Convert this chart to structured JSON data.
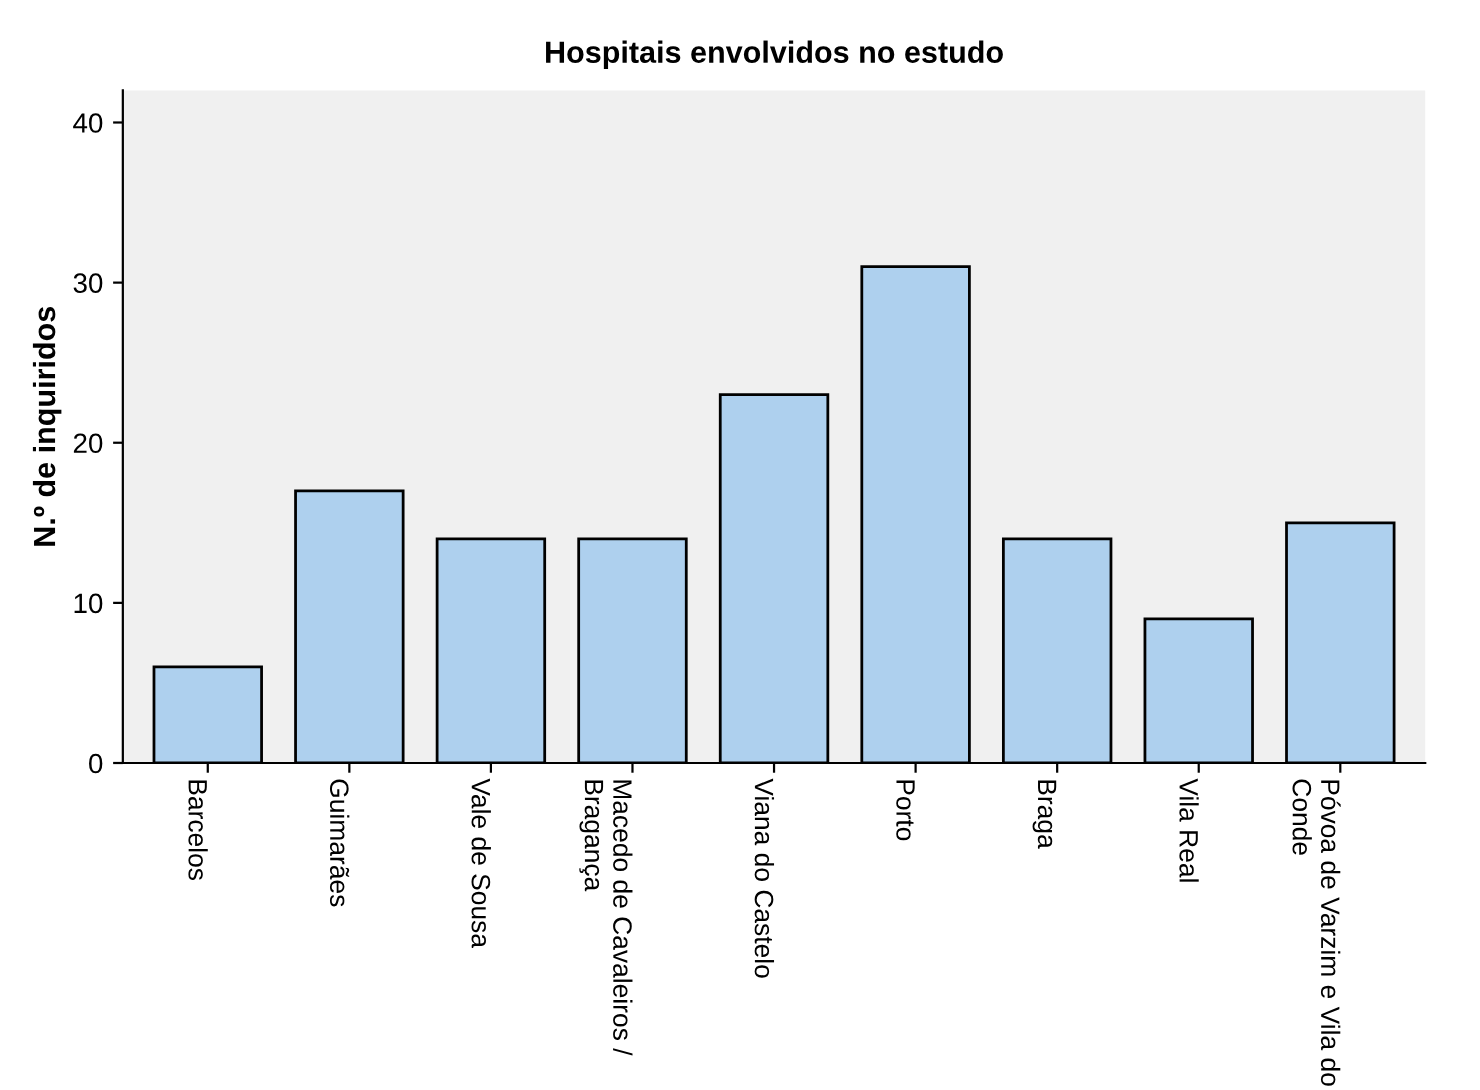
{
  "chart_data": {
    "type": "bar",
    "title": "Hospitais envolvidos no estudo",
    "ylabel": "N.º de inquiridos",
    "categories": [
      "Barcelos",
      "Guimarães",
      "Vale de Sousa",
      "Macedo de Cavaleiros /\nBragança",
      "Viana do Castelo",
      "Porto",
      "Braga",
      "Vila Real",
      "Póvoa de Varzim e Vila do\nConde"
    ],
    "values": [
      6,
      17,
      14,
      14,
      23,
      31,
      14,
      9,
      15
    ],
    "color": "#aed0ee",
    "ylim": [
      0,
      42
    ],
    "yticks": [
      0,
      10,
      20,
      30,
      40
    ],
    "grid": false
  }
}
